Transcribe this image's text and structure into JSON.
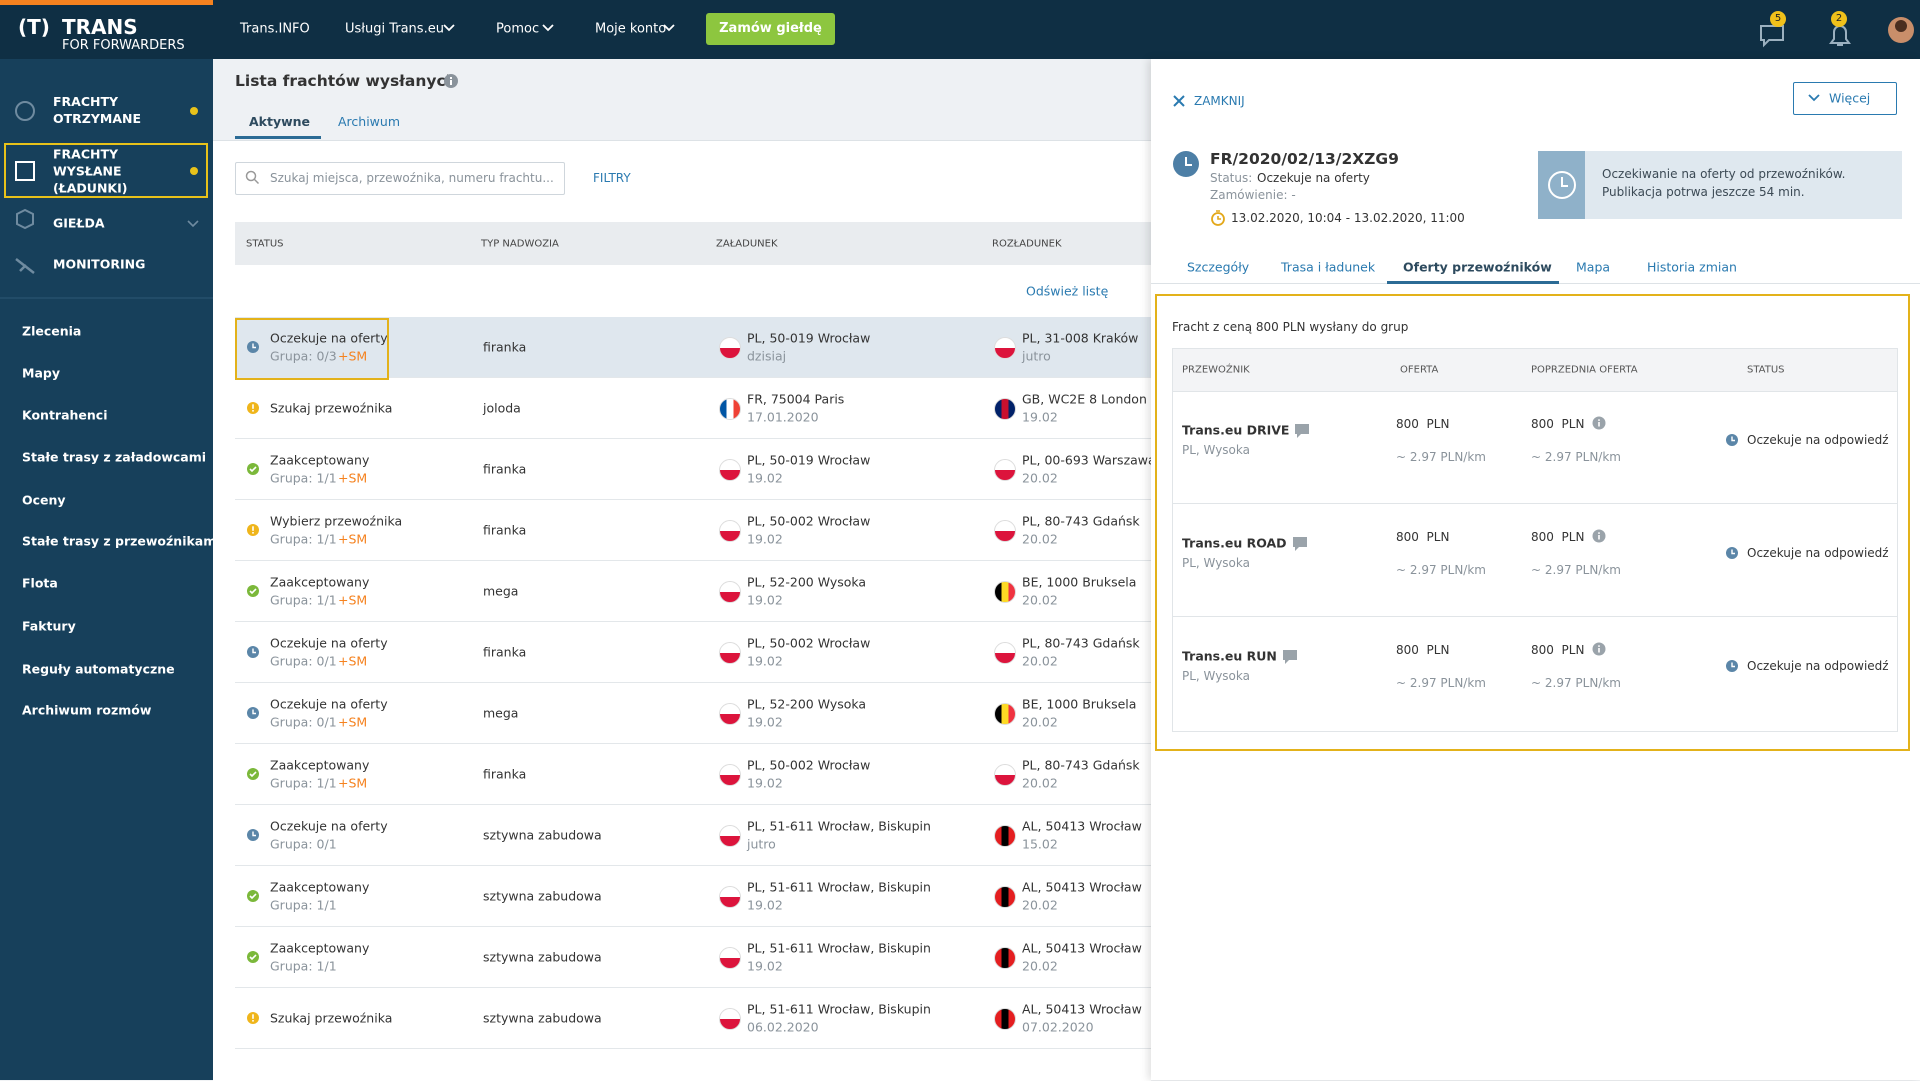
{
  "header": {
    "logo_mark": "(T)",
    "logo": "TRANS",
    "logo_sub": "FOR FORWARDERS",
    "nav": [
      "Trans.INFO",
      "Usługi Trans.eu",
      "Pomoc",
      "Moje konto"
    ],
    "order_button": "Zamów giełdę",
    "messages_badge": 5,
    "notifications_badge": 2
  },
  "sidebar": {
    "sections": [
      "FRACHTY OTRZYMANE",
      "FRACHTY WYSŁANE (ŁADUNKI)",
      "GIEŁDA",
      "MONITORING"
    ],
    "links": [
      "Zlecenia",
      "Mapy",
      "Kontrahenci",
      "Stałe trasy z załadowcami",
      "Oceny",
      "Stałe trasy z przewoźnikami",
      "Flota",
      "Faktury",
      "Reguły automatyczne",
      "Archiwum rozmów"
    ]
  },
  "list": {
    "title": "Lista frachtów wysłanych",
    "tabs": [
      "Aktywne",
      "Archiwum"
    ],
    "search_placeholder": "Szukaj miejsca, przewoźnika, numeru frachtu...",
    "filters": "FILTRY",
    "columns": [
      "STATUS",
      "TYP NADWOZIA",
      "ZAŁADUNEK",
      "ROZŁADUNEK"
    ],
    "refresh": "Odśwież listę",
    "rows": [
      {
        "status": "Oczekuje na oferty",
        "icon": "clock",
        "group": "Grupa: 0/3",
        "sm": "+SM",
        "body": "firanka",
        "load": "PL, 50-019 Wrocław",
        "load_date": "dzisiaj",
        "unload": "PL, 31-008 Kraków",
        "unload_date": "jutro"
      },
      {
        "status": "Szukaj przewoźnika",
        "icon": "warning",
        "body": "joloda",
        "load": "FR, 75004 Paris",
        "load_date": "17.01.2020",
        "unload": "GB, WC2E 8 London",
        "unload_date": "19.02"
      },
      {
        "status": "Zaakceptowany",
        "icon": "check",
        "group": "Grupa: 1/1",
        "sm": "+SM",
        "body": "firanka",
        "load": "PL, 50-019 Wrocław",
        "load_date": "19.02",
        "unload": "PL, 00-693 Warszawa",
        "unload_date": "20.02"
      },
      {
        "status": "Wybierz przewoźnika",
        "icon": "warning",
        "group": "Grupa: 1/1",
        "sm": "+SM",
        "body": "firanka",
        "load": "PL, 50-002 Wrocław",
        "load_date": "19.02",
        "unload": "PL, 80-743 Gdańsk",
        "unload_date": "20.02"
      },
      {
        "status": "Zaakceptowany",
        "icon": "check",
        "group": "Grupa: 1/1",
        "sm": "+SM",
        "body": "mega",
        "load": "PL, 52-200 Wysoka",
        "load_date": "19.02",
        "unload": "BE, 1000 Bruksela",
        "unload_date": "20.02"
      },
      {
        "status": "Oczekuje na oferty",
        "icon": "clock",
        "group": "Grupa: 0/1",
        "sm": "+SM",
        "body": "firanka",
        "load": "PL, 50-002 Wrocław",
        "load_date": "19.02",
        "unload": "PL, 80-743 Gdańsk",
        "unload_date": "20.02"
      },
      {
        "status": "Oczekuje na oferty",
        "icon": "clock",
        "group": "Grupa: 0/1",
        "sm": "+SM",
        "body": "mega",
        "load": "PL, 52-200 Wysoka",
        "load_date": "19.02",
        "unload": "BE, 1000 Bruksela",
        "unload_date": "20.02"
      },
      {
        "status": "Zaakceptowany",
        "icon": "check",
        "group": "Grupa: 1/1",
        "sm": "+SM",
        "body": "firanka",
        "load": "PL, 50-002 Wrocław",
        "load_date": "19.02",
        "unload": "PL, 80-743 Gdańsk",
        "unload_date": "20.02"
      },
      {
        "status": "Oczekuje na oferty",
        "icon": "clock",
        "group": "Grupa: 0/1",
        "body": "sztywna zabudowa",
        "load": "PL, 51-611 Wrocław, Biskupin",
        "load_date": "jutro",
        "unload": "AL, 50413 Wrocław",
        "unload_date": "15.02"
      },
      {
        "status": "Zaakceptowany",
        "icon": "check",
        "group": "Grupa: 1/1",
        "body": "sztywna zabudowa",
        "load": "PL, 51-611 Wrocław, Biskupin",
        "load_date": "19.02",
        "unload": "AL, 50413 Wrocław",
        "unload_date": "20.02"
      },
      {
        "status": "Zaakceptowany",
        "icon": "check",
        "group": "Grupa: 1/1",
        "body": "sztywna zabudowa",
        "load": "PL, 51-611 Wrocław, Biskupin",
        "load_date": "19.02",
        "unload": "AL, 50413 Wrocław",
        "unload_date": "20.02"
      },
      {
        "status": "Szukaj przewoźnika",
        "icon": "warning",
        "body": "sztywna zabudowa",
        "load": "PL, 51-611 Wrocław, Biskupin",
        "load_date": "06.02.2020",
        "unload": "AL, 50413 Wrocław",
        "unload_date": "07.02.2020"
      }
    ]
  },
  "flags": {
    "PL": {
      "dir": "h",
      "colors": [
        "#ffffff",
        "#dc143c"
      ]
    },
    "FR": {
      "dir": "v",
      "colors": [
        "#0055a4",
        "#ffffff",
        "#ef4135"
      ]
    },
    "GB": {
      "dir": "v",
      "colors": [
        "#012169",
        "#c8102e",
        "#012169"
      ]
    },
    "BE": {
      "dir": "v",
      "colors": [
        "#000000",
        "#fdda24",
        "#ef3340"
      ]
    },
    "AL": {
      "dir": "v",
      "colors": [
        "#e41e20",
        "#000000",
        "#e41e20"
      ]
    }
  },
  "panel": {
    "close": "ZAMKNIJ",
    "more": "Więcej",
    "freight_id": "FR/2020/02/13/2XZG9",
    "status_label": "Status:",
    "status_value": "Oczekuje na oferty",
    "order": "Zamówienie: -",
    "dates": "13.02.2020, 10:04 - 13.02.2020, 11:00",
    "notice": "Oczekiwanie na oferty od przewoźników. Publikacja potrwa jeszcze 54 min.",
    "tabs": [
      "Szczegóły",
      "Trasa i ładunek",
      "Oferty przewoźników",
      "Mapa",
      "Historia zmian"
    ],
    "active_tab": 2,
    "offers_intro": "Fracht z ceną 800 PLN wysłany do grup",
    "offer_columns": [
      "PRZEWOŹNIK",
      "OFERTA",
      "POPRZEDNIA OFERTA",
      "STATUS"
    ],
    "offers": [
      {
        "carrier": "Trans.eu DRIVE",
        "location": "PL, Wysoka",
        "offer": "800  PLN",
        "offer_km": "~ 2.97 PLN/km",
        "previous": "800  PLN",
        "previous_km": "~ 2.97 PLN/km",
        "status": "Oczekuje na odpowiedź"
      },
      {
        "carrier": "Trans.eu ROAD",
        "location": "PL, Wysoka",
        "offer": "800  PLN",
        "offer_km": "~ 2.97 PLN/km",
        "previous": "800  PLN",
        "previous_km": "~ 2.97 PLN/km",
        "status": "Oczekuje na odpowiedź"
      },
      {
        "carrier": "Trans.eu RUN",
        "location": "PL, Wysoka",
        "offer": "800  PLN",
        "offer_km": "~ 2.97 PLN/km",
        "previous": "800  PLN",
        "previous_km": "~ 2.97 PLN/km",
        "status": "Oczekuje na odpowiedź"
      }
    ]
  }
}
